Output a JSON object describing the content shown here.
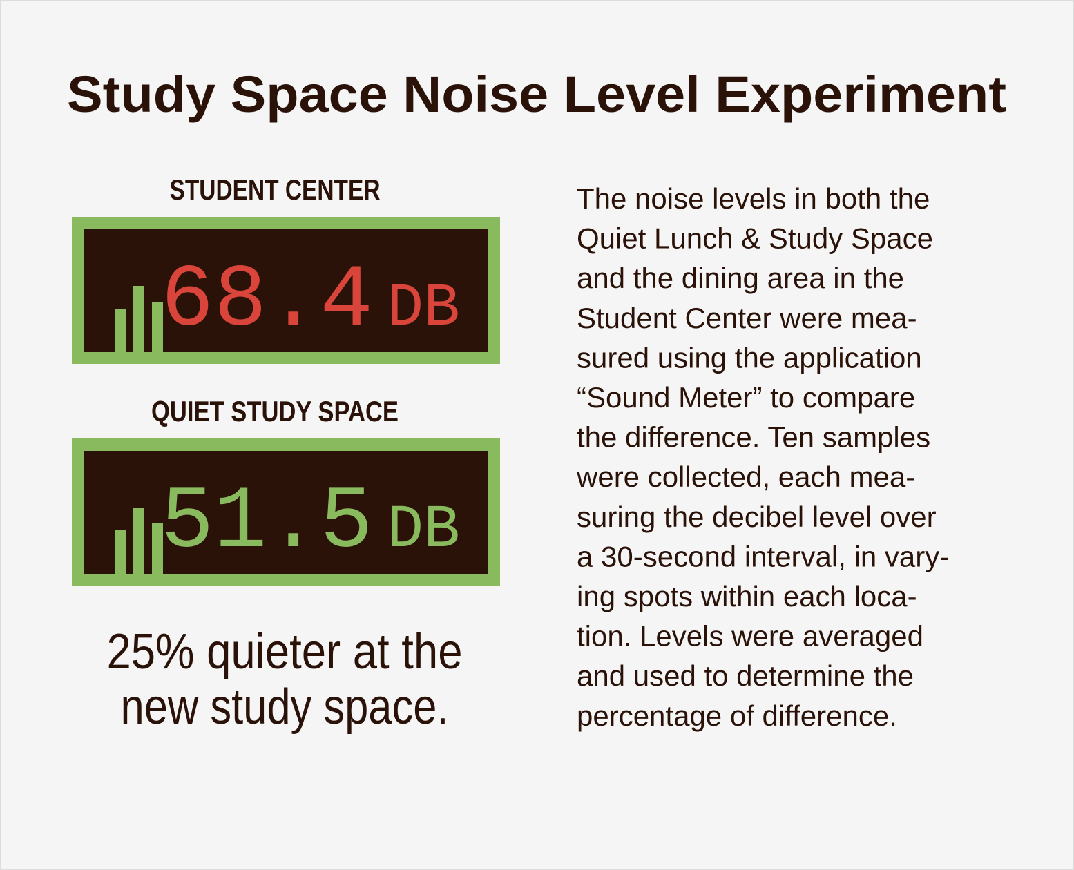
{
  "title": "Study Space Noise Level Experiment",
  "meters": [
    {
      "label": "STUDENT CENTER",
      "reading": "68.4",
      "unit": "DB"
    },
    {
      "label": "QUIET STUDY SPACE",
      "reading": "51.5",
      "unit": "DB"
    }
  ],
  "summary": [
    "25% quieter at the",
    "new study space."
  ],
  "description": [
    "The noise levels in both the",
    "Quiet Lunch & Study Space",
    "and the dining area in the",
    "Student Center were mea-",
    "sured using the application",
    "“Sound Meter” to compare",
    "the difference. Ten samples",
    "were collected, each mea-",
    "suring the decibel level over",
    "a 30-second interval, in vary-",
    "ing spots within each loca-",
    "tion. Levels were averaged",
    "and used to determine the",
    "percentage of difference."
  ]
}
